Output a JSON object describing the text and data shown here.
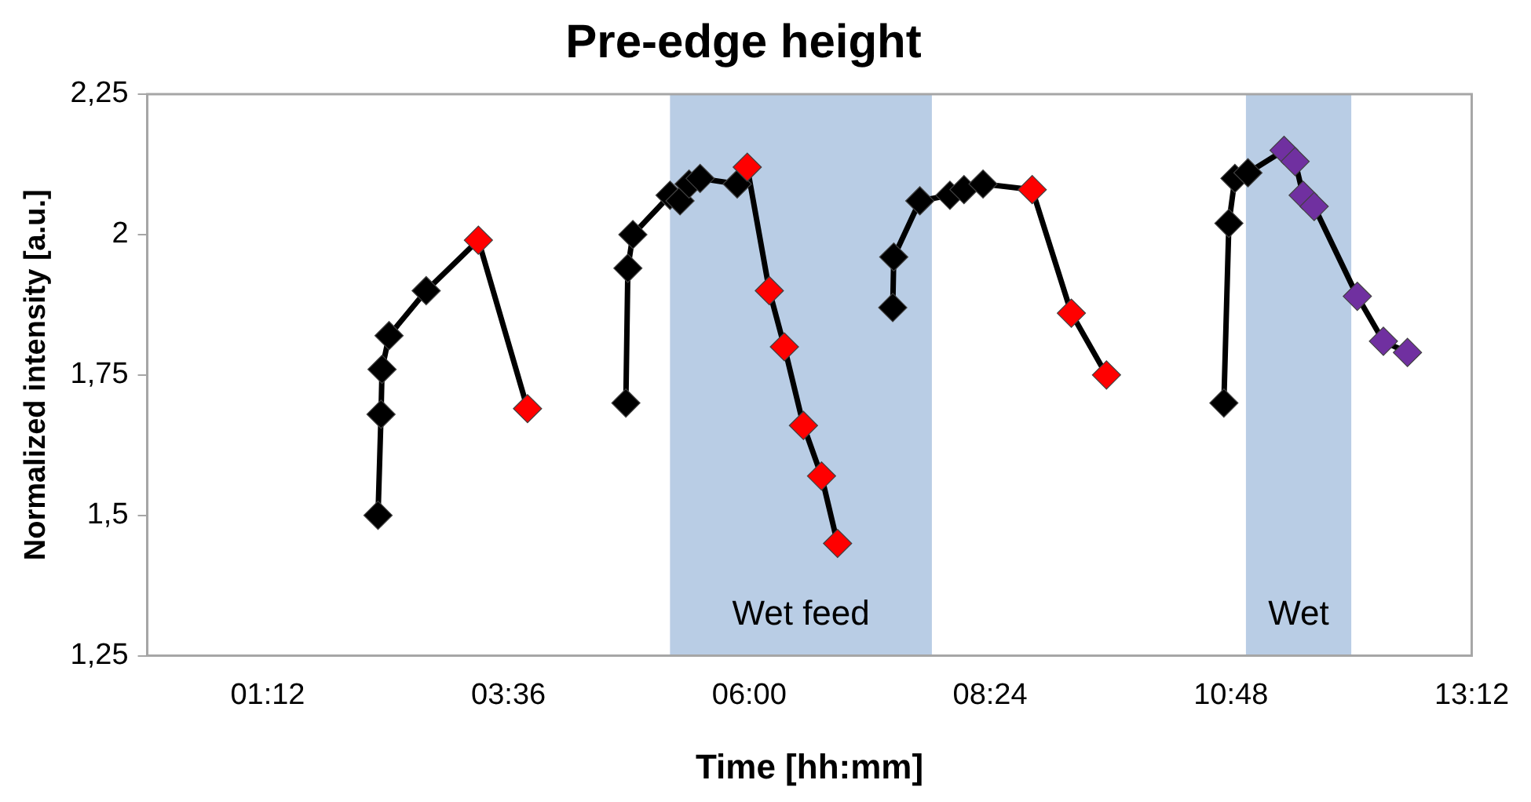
{
  "chart_data": {
    "type": "line",
    "title": "Pre-edge height",
    "xlabel": "Time [hh:mm]",
    "ylabel": "Normalized intensity [a.u.]",
    "xlim": [
      0,
      13.2
    ],
    "xticks": [
      {
        "value": 1.2,
        "label": "01:12"
      },
      {
        "value": 3.6,
        "label": "03:36"
      },
      {
        "value": 6,
        "label": "06:00"
      },
      {
        "value": 8.4,
        "label": "08:24"
      },
      {
        "value": 10.8,
        "label": "10:48"
      },
      {
        "value": 13.2,
        "label": "13:12"
      }
    ],
    "ylim": [
      1.25,
      2.25
    ],
    "yticks": [
      {
        "value": 1.25,
        "label": "1,25"
      },
      {
        "value": 1.5,
        "label": "1,5"
      },
      {
        "value": 1.75,
        "label": "1,75"
      },
      {
        "value": 2,
        "label": "2"
      },
      {
        "value": 2.25,
        "label": "2,25"
      }
    ],
    "grid": false,
    "legend": false,
    "marker": "diamond",
    "line_style": "solid",
    "bands": [
      {
        "axis": "x",
        "from": 5.21,
        "to": 7.82,
        "label": "Wet feed",
        "color": "#b9cde5"
      },
      {
        "axis": "x",
        "from": 10.95,
        "to": 12.0,
        "label": "Wet",
        "color": "#b9cde5"
      }
    ],
    "series": [
      {
        "color": "#000000",
        "x": [
          2.3,
          2.33,
          2.34,
          2.41,
          2.78,
          3.3,
          3.79
        ],
        "values": [
          1.5,
          1.68,
          1.76,
          1.82,
          1.9,
          1.99,
          1.69
        ],
        "colors": [
          "#000000",
          "#000000",
          "#000000",
          "#000000",
          "#000000",
          "#ff0000",
          "#ff0000"
        ]
      },
      {
        "color": "#000000",
        "x": [
          4.77,
          4.79,
          4.84,
          5.21,
          5.31,
          5.4,
          5.51,
          5.88,
          5.98,
          6.2,
          6.35,
          6.54,
          6.72,
          6.88
        ],
        "values": [
          1.7,
          1.94,
          2.0,
          2.07,
          2.06,
          2.09,
          2.1,
          2.09,
          2.12,
          1.9,
          1.8,
          1.66,
          1.57,
          1.45
        ],
        "colors": [
          "#000000",
          "#000000",
          "#000000",
          "#000000",
          "#000000",
          "#000000",
          "#000000",
          "#000000",
          "#ff0000",
          "#ff0000",
          "#ff0000",
          "#ff0000",
          "#ff0000",
          "#ff0000"
        ]
      },
      {
        "color": "#000000",
        "x": [
          7.43,
          7.44,
          7.7,
          8.0,
          8.14,
          8.33,
          8.82,
          9.21,
          9.56
        ],
        "values": [
          1.87,
          1.96,
          2.06,
          2.07,
          2.08,
          2.09,
          2.08,
          1.86,
          1.75
        ],
        "colors": [
          "#000000",
          "#000000",
          "#000000",
          "#000000",
          "#000000",
          "#000000",
          "#ff0000",
          "#ff0000",
          "#ff0000"
        ]
      },
      {
        "color": "#000000",
        "x": [
          10.73,
          10.78,
          10.84,
          10.97,
          11.33,
          11.44,
          11.52,
          11.63,
          12.06,
          12.32,
          12.56
        ],
        "values": [
          1.7,
          2.02,
          2.1,
          2.11,
          2.15,
          2.13,
          2.07,
          2.05,
          1.89,
          1.81,
          1.79
        ],
        "colors": [
          "#000000",
          "#000000",
          "#000000",
          "#000000",
          "#7030a0",
          "#7030a0",
          "#7030a0",
          "#7030a0",
          "#7030a0",
          "#7030a0",
          "#7030a0"
        ]
      }
    ]
  }
}
